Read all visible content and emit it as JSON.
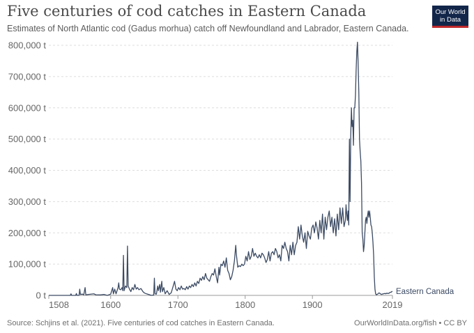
{
  "header": {
    "title": "Five centuries of cod catches in Eastern Canada",
    "subtitle": "Estimates of North Atlantic cod (Gadus morhua) catch off Newfoundland and Labrador, Eastern Canada."
  },
  "logo": {
    "line1": "Our World",
    "line2": "in Data"
  },
  "footer": {
    "source": "Source: Schjins et al. (2021). Five centuries of cod catches in Eastern Canada.",
    "url": "OurWorldInData.org/fish • CC BY"
  },
  "colors": {
    "line": "#3b4a63",
    "grid": "#dddddd",
    "axis_text": "#666666",
    "logo_bg": "#12264a",
    "logo_accent": "#c0282b"
  },
  "chart_data": {
    "type": "line",
    "xlim": [
      1508,
      2019
    ],
    "ylim": [
      0,
      800000
    ],
    "grid": true,
    "y_ticks": [
      0,
      100000,
      200000,
      300000,
      400000,
      500000,
      600000,
      700000,
      800000
    ],
    "y_tick_labels": [
      "0 t",
      "100,000 t",
      "200,000 t",
      "300,000 t",
      "400,000 t",
      "500,000 t",
      "600,000 t",
      "700,000 t",
      "800,000 t"
    ],
    "x_ticks": [
      1508,
      1600,
      1700,
      1800,
      1900,
      2019
    ],
    "x_tick_labels": [
      "1508",
      "1600",
      "1700",
      "1800",
      "1900",
      "2019"
    ],
    "series": [
      {
        "name": "Eastern Canada",
        "points": [
          [
            1508,
            0
          ],
          [
            1540,
            0
          ],
          [
            1541,
            5000
          ],
          [
            1542,
            0
          ],
          [
            1548,
            0
          ],
          [
            1549,
            6000
          ],
          [
            1550,
            0
          ],
          [
            1553,
            0
          ],
          [
            1554,
            20000
          ],
          [
            1555,
            3000
          ],
          [
            1558,
            4000
          ],
          [
            1560,
            2000
          ],
          [
            1562,
            25000
          ],
          [
            1563,
            2000
          ],
          [
            1575,
            5000
          ],
          [
            1578,
            2000
          ],
          [
            1585,
            1500
          ],
          [
            1590,
            3000
          ],
          [
            1595,
            0
          ],
          [
            1600,
            4000
          ],
          [
            1603,
            25000
          ],
          [
            1604,
            5000
          ],
          [
            1606,
            20000
          ],
          [
            1608,
            5000
          ],
          [
            1611,
            25000
          ],
          [
            1612,
            40000
          ],
          [
            1613,
            20000
          ],
          [
            1615,
            18000
          ],
          [
            1617,
            25000
          ],
          [
            1618,
            15000
          ],
          [
            1619,
            128000
          ],
          [
            1620,
            15000
          ],
          [
            1622,
            30000
          ],
          [
            1624,
            25000
          ],
          [
            1625,
            158000
          ],
          [
            1626,
            30000
          ],
          [
            1628,
            20000
          ],
          [
            1630,
            12000
          ],
          [
            1632,
            25000
          ],
          [
            1634,
            18000
          ],
          [
            1636,
            35000
          ],
          [
            1638,
            20000
          ],
          [
            1640,
            25000
          ],
          [
            1642,
            18000
          ],
          [
            1645,
            22000
          ],
          [
            1648,
            12000
          ],
          [
            1650,
            8000
          ],
          [
            1652,
            6000
          ],
          [
            1655,
            4000
          ],
          [
            1658,
            2000
          ],
          [
            1660,
            0
          ],
          [
            1664,
            1000
          ],
          [
            1665,
            55000
          ],
          [
            1666,
            5000
          ],
          [
            1668,
            4000
          ],
          [
            1670,
            30000
          ],
          [
            1671,
            15000
          ],
          [
            1673,
            35000
          ],
          [
            1674,
            10000
          ],
          [
            1676,
            45000
          ],
          [
            1677,
            12000
          ],
          [
            1679,
            25000
          ],
          [
            1681,
            5000
          ],
          [
            1684,
            15000
          ],
          [
            1687,
            3000
          ],
          [
            1690,
            8000
          ],
          [
            1693,
            30000
          ],
          [
            1695,
            45000
          ],
          [
            1697,
            20000
          ],
          [
            1699,
            15000
          ],
          [
            1701,
            25000
          ],
          [
            1703,
            18000
          ],
          [
            1705,
            30000
          ],
          [
            1707,
            20000
          ],
          [
            1709,
            22000
          ],
          [
            1711,
            18000
          ],
          [
            1713,
            28000
          ],
          [
            1715,
            20000
          ],
          [
            1717,
            30000
          ],
          [
            1719,
            25000
          ],
          [
            1721,
            35000
          ],
          [
            1723,
            28000
          ],
          [
            1725,
            40000
          ],
          [
            1727,
            30000
          ],
          [
            1729,
            45000
          ],
          [
            1731,
            38000
          ],
          [
            1733,
            55000
          ],
          [
            1735,
            48000
          ],
          [
            1737,
            60000
          ],
          [
            1739,
            50000
          ],
          [
            1741,
            70000
          ],
          [
            1743,
            55000
          ],
          [
            1745,
            50000
          ],
          [
            1747,
            45000
          ],
          [
            1749,
            60000
          ],
          [
            1751,
            70000
          ],
          [
            1753,
            65000
          ],
          [
            1755,
            85000
          ],
          [
            1757,
            60000
          ],
          [
            1759,
            40000
          ],
          [
            1761,
            90000
          ],
          [
            1762,
            65000
          ],
          [
            1764,
            100000
          ],
          [
            1766,
            95000
          ],
          [
            1768,
            110000
          ],
          [
            1770,
            90000
          ],
          [
            1772,
            120000
          ],
          [
            1774,
            80000
          ],
          [
            1776,
            70000
          ],
          [
            1778,
            50000
          ],
          [
            1780,
            60000
          ],
          [
            1782,
            80000
          ],
          [
            1784,
            110000
          ],
          [
            1786,
            160000
          ],
          [
            1787,
            130000
          ],
          [
            1789,
            90000
          ],
          [
            1791,
            95000
          ],
          [
            1793,
            92000
          ],
          [
            1795,
            100000
          ],
          [
            1797,
            95000
          ],
          [
            1799,
            100000
          ],
          [
            1801,
            125000
          ],
          [
            1803,
            110000
          ],
          [
            1805,
            140000
          ],
          [
            1807,
            115000
          ],
          [
            1809,
            125000
          ],
          [
            1811,
            150000
          ],
          [
            1813,
            125000
          ],
          [
            1815,
            135000
          ],
          [
            1817,
            125000
          ],
          [
            1819,
            120000
          ],
          [
            1821,
            130000
          ],
          [
            1823,
            120000
          ],
          [
            1825,
            135000
          ],
          [
            1827,
            130000
          ],
          [
            1829,
            120000
          ],
          [
            1831,
            105000
          ],
          [
            1833,
            115000
          ],
          [
            1835,
            140000
          ],
          [
            1837,
            110000
          ],
          [
            1839,
            135000
          ],
          [
            1841,
            140000
          ],
          [
            1843,
            130000
          ],
          [
            1845,
            150000
          ],
          [
            1847,
            140000
          ],
          [
            1849,
            120000
          ],
          [
            1851,
            130000
          ],
          [
            1853,
            110000
          ],
          [
            1855,
            160000
          ],
          [
            1857,
            150000
          ],
          [
            1859,
            170000
          ],
          [
            1861,
            150000
          ],
          [
            1863,
            140000
          ],
          [
            1865,
            110000
          ],
          [
            1867,
            160000
          ],
          [
            1869,
            130000
          ],
          [
            1871,
            170000
          ],
          [
            1873,
            130000
          ],
          [
            1875,
            160000
          ],
          [
            1877,
            170000
          ],
          [
            1879,
            220000
          ],
          [
            1881,
            180000
          ],
          [
            1883,
            225000
          ],
          [
            1885,
            190000
          ],
          [
            1887,
            170000
          ],
          [
            1889,
            200000
          ],
          [
            1891,
            150000
          ],
          [
            1893,
            205000
          ],
          [
            1895,
            190000
          ],
          [
            1897,
            180000
          ],
          [
            1899,
            215000
          ],
          [
            1901,
            225000
          ],
          [
            1903,
            200000
          ],
          [
            1905,
            235000
          ],
          [
            1907,
            215000
          ],
          [
            1909,
            180000
          ],
          [
            1911,
            240000
          ],
          [
            1913,
            200000
          ],
          [
            1915,
            260000
          ],
          [
            1917,
            180000
          ],
          [
            1919,
            250000
          ],
          [
            1921,
            210000
          ],
          [
            1923,
            250000
          ],
          [
            1925,
            270000
          ],
          [
            1927,
            220000
          ],
          [
            1929,
            250000
          ],
          [
            1931,
            200000
          ],
          [
            1933,
            245000
          ],
          [
            1935,
            190000
          ],
          [
            1937,
            260000
          ],
          [
            1939,
            210000
          ],
          [
            1941,
            280000
          ],
          [
            1943,
            230000
          ],
          [
            1945,
            280000
          ],
          [
            1947,
            220000
          ],
          [
            1949,
            240000
          ],
          [
            1950,
            290000
          ],
          [
            1951,
            260000
          ],
          [
            1952,
            240000
          ],
          [
            1953,
            270000
          ],
          [
            1954,
            225000
          ],
          [
            1955,
            500000
          ],
          [
            1956,
            300000
          ],
          [
            1957,
            510000
          ],
          [
            1958,
            600000
          ],
          [
            1959,
            540000
          ],
          [
            1960,
            560000
          ],
          [
            1961,
            480000
          ],
          [
            1962,
            600000
          ],
          [
            1963,
            600000
          ],
          [
            1964,
            640000
          ],
          [
            1965,
            720000
          ],
          [
            1966,
            780000
          ],
          [
            1967,
            810000
          ],
          [
            1968,
            740000
          ],
          [
            1969,
            650000
          ],
          [
            1970,
            500000
          ],
          [
            1971,
            460000
          ],
          [
            1972,
            430000
          ],
          [
            1973,
            360000
          ],
          [
            1974,
            200000
          ],
          [
            1975,
            180000
          ],
          [
            1976,
            140000
          ],
          [
            1977,
            160000
          ],
          [
            1978,
            200000
          ],
          [
            1979,
            240000
          ],
          [
            1980,
            250000
          ],
          [
            1981,
            230000
          ],
          [
            1982,
            255000
          ],
          [
            1983,
            270000
          ],
          [
            1984,
            250000
          ],
          [
            1985,
            270000
          ],
          [
            1986,
            250000
          ],
          [
            1987,
            225000
          ],
          [
            1988,
            220000
          ],
          [
            1989,
            200000
          ],
          [
            1990,
            170000
          ],
          [
            1991,
            130000
          ],
          [
            1992,
            60000
          ],
          [
            1993,
            20000
          ],
          [
            1994,
            5000
          ],
          [
            1995,
            2000
          ],
          [
            1996,
            3000
          ],
          [
            1997,
            4000
          ],
          [
            1998,
            6000
          ],
          [
            1999,
            8000
          ],
          [
            2000,
            7000
          ],
          [
            2001,
            5000
          ],
          [
            2002,
            4000
          ],
          [
            2003,
            3000
          ],
          [
            2004,
            4000
          ],
          [
            2005,
            5000
          ],
          [
            2006,
            5000
          ],
          [
            2007,
            6000
          ],
          [
            2008,
            6000
          ],
          [
            2009,
            5000
          ],
          [
            2010,
            7000
          ],
          [
            2011,
            6000
          ],
          [
            2012,
            7000
          ],
          [
            2013,
            6000
          ],
          [
            2014,
            7000
          ],
          [
            2015,
            9000
          ],
          [
            2016,
            10000
          ],
          [
            2017,
            10000
          ],
          [
            2018,
            12000
          ],
          [
            2019,
            13000
          ]
        ]
      }
    ]
  }
}
